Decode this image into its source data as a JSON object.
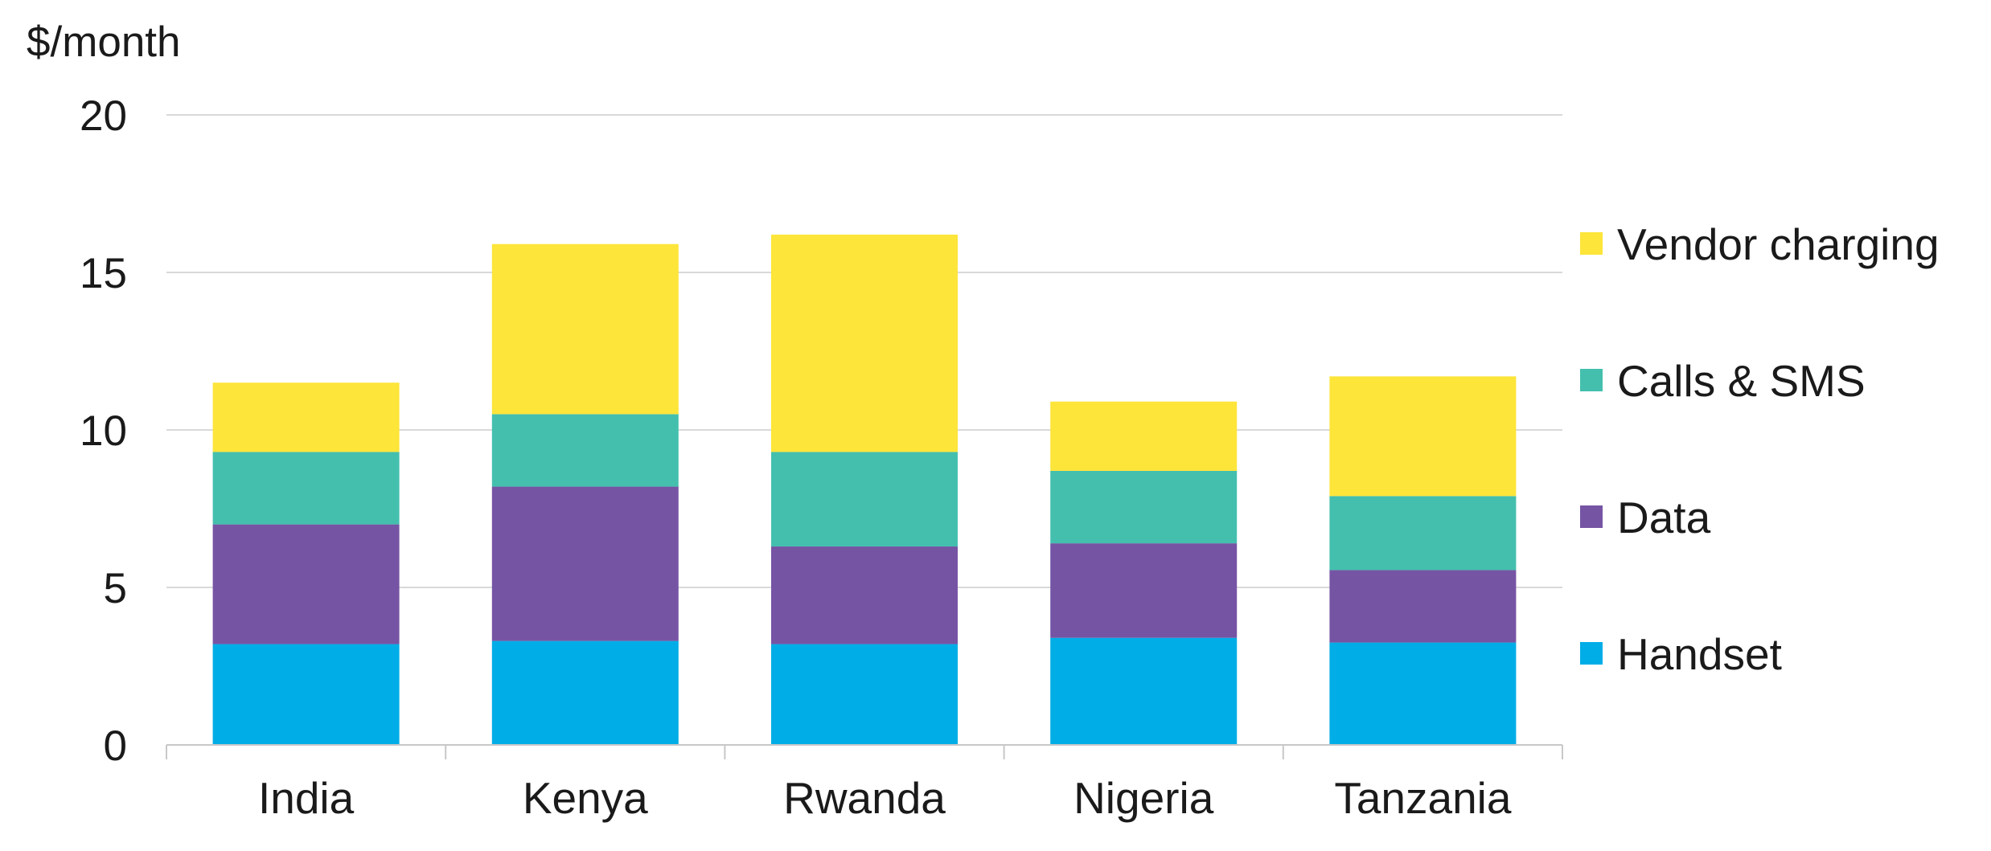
{
  "chart_data": {
    "type": "bar",
    "stacked": true,
    "ylabel": "$/month",
    "ylim": [
      0,
      20
    ],
    "yticks": [
      0,
      5,
      10,
      15,
      20
    ],
    "grid": true,
    "legend_position": "right",
    "categories": [
      "India",
      "Kenya",
      "Rwanda",
      "Nigeria",
      "Tanzania"
    ],
    "series": [
      {
        "name": "Handset",
        "color": "#00ADE6",
        "values": [
          3.2,
          3.3,
          3.2,
          3.4,
          3.25
        ]
      },
      {
        "name": "Data",
        "color": "#7654A4",
        "values": [
          3.8,
          4.9,
          3.1,
          3.0,
          2.3
        ]
      },
      {
        "name": "Calls & SMS",
        "color": "#44BFAE",
        "values": [
          2.3,
          2.3,
          3.0,
          2.3,
          2.35
        ]
      },
      {
        "name": "Vendor charging",
        "color": "#FDE53A",
        "values": [
          2.2,
          5.4,
          6.9,
          2.2,
          3.8
        ]
      }
    ]
  }
}
